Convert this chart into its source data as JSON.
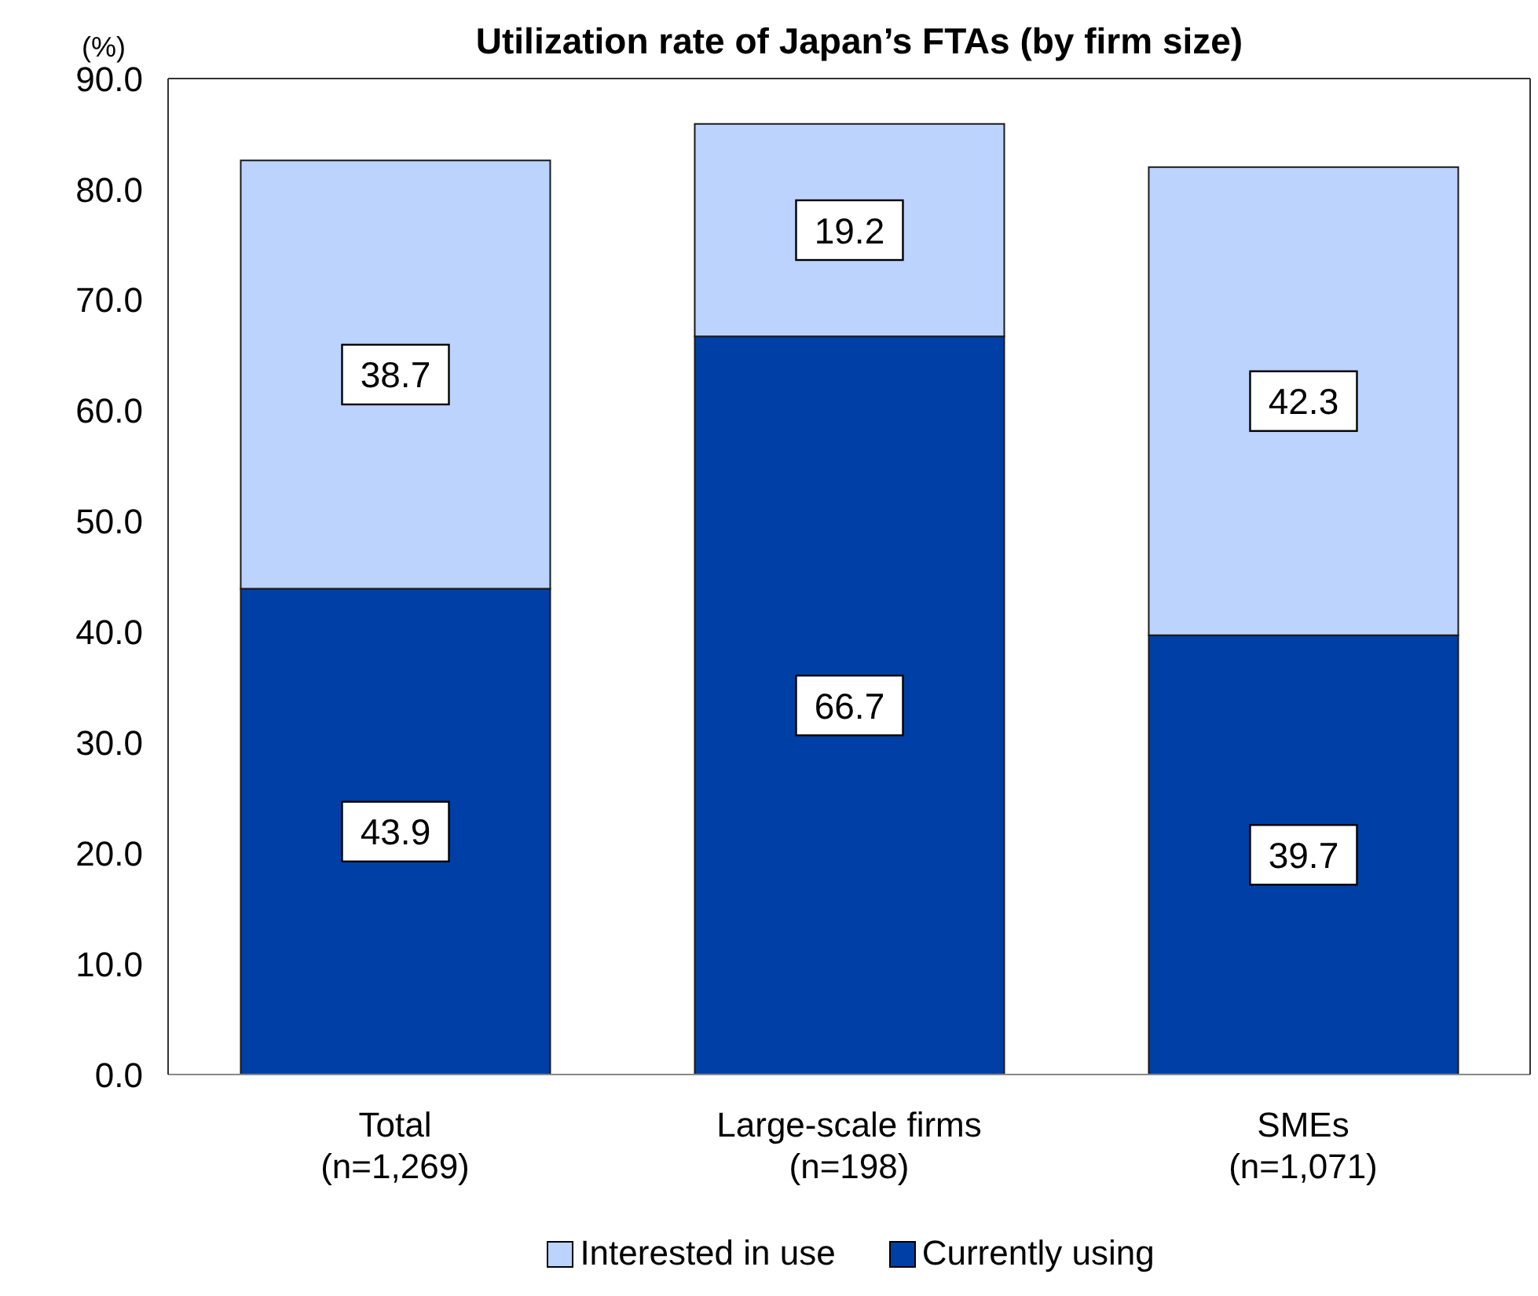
{
  "chart_data": {
    "type": "bar",
    "title": "Utilization rate of Japan’s FTAs (by firm size)",
    "ylabel": "(%)",
    "categories": [
      "Total\n(n=1,269)",
      "Large-scale firms\n(n=198)",
      "SMEs\n(n=1,071)"
    ],
    "series": [
      {
        "name": "Currently using",
        "color": "#003fa5",
        "values": [
          43.9,
          66.7,
          39.7
        ]
      },
      {
        "name": "Interested in use",
        "color": "#bbd3fd",
        "values": [
          38.7,
          19.2,
          42.3
        ]
      }
    ],
    "stacked": true,
    "ylim": [
      0,
      90
    ],
    "yticks": [
      {
        "value": 0,
        "label": "0.0"
      },
      {
        "value": 10,
        "label": "10.0"
      },
      {
        "value": 20,
        "label": "20.0"
      },
      {
        "value": 30,
        "label": "30.0"
      },
      {
        "value": 40,
        "label": "40.0"
      },
      {
        "value": 50,
        "label": "50.0"
      },
      {
        "value": 60,
        "label": "60.0"
      },
      {
        "value": 70,
        "label": "70.0"
      },
      {
        "value": 80,
        "label": "80.0"
      },
      {
        "value": 90,
        "label": "90.0"
      }
    ],
    "data_labels": true,
    "legend": "bottom"
  }
}
